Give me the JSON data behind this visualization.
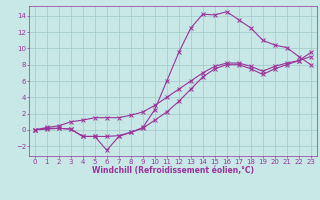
{
  "title": "",
  "xlabel": "Windchill (Refroidissement éolien,°C)",
  "bg_color": "#c8e8e8",
  "line_color": "#993399",
  "xlim": [
    -0.5,
    23.5
  ],
  "ylim": [
    -3.2,
    15.2
  ],
  "xticks": [
    0,
    1,
    2,
    3,
    4,
    5,
    6,
    7,
    8,
    9,
    10,
    11,
    12,
    13,
    14,
    15,
    16,
    17,
    18,
    19,
    20,
    21,
    22,
    23
  ],
  "yticks": [
    -2,
    0,
    2,
    4,
    6,
    8,
    10,
    12,
    14
  ],
  "curve1_x": [
    0,
    1,
    2,
    3,
    4,
    5,
    6,
    7,
    8,
    9,
    10,
    11,
    12,
    13,
    14,
    15,
    16,
    17,
    18,
    19,
    20,
    21,
    22,
    23
  ],
  "curve1_y": [
    0,
    0.2,
    0.2,
    0.1,
    -0.8,
    -0.8,
    -2.5,
    -0.8,
    -0.3,
    0.3,
    2.5,
    6.0,
    9.5,
    12.5,
    14.2,
    14.1,
    14.5,
    13.5,
    12.5,
    11.0,
    10.4,
    10.1,
    9.0,
    8.0
  ],
  "curve2_x": [
    0,
    1,
    2,
    3,
    4,
    5,
    6,
    7,
    8,
    9,
    10,
    11,
    12,
    13,
    14,
    15,
    16,
    17,
    18,
    19,
    20,
    21,
    22,
    23
  ],
  "curve2_y": [
    0,
    0.1,
    0.2,
    0.1,
    -0.8,
    -0.8,
    -0.8,
    -0.7,
    -0.3,
    0.2,
    1.2,
    2.2,
    3.5,
    5.0,
    6.5,
    7.5,
    8.0,
    8.0,
    7.5,
    6.8,
    7.5,
    8.0,
    8.5,
    9.5
  ],
  "curve3_x": [
    0,
    1,
    2,
    3,
    4,
    5,
    6,
    7,
    8,
    9,
    10,
    11,
    12,
    13,
    14,
    15,
    16,
    17,
    18,
    19,
    20,
    21,
    22,
    23
  ],
  "curve3_y": [
    0,
    0.3,
    0.5,
    1.0,
    1.2,
    1.5,
    1.5,
    1.5,
    1.8,
    2.2,
    3.0,
    4.0,
    5.0,
    6.0,
    7.0,
    7.8,
    8.2,
    8.2,
    7.8,
    7.2,
    7.8,
    8.2,
    8.5,
    9.0
  ],
  "grid_color": "#a0c8c8",
  "xlabel_fontsize": 5.5,
  "tick_fontsize": 5.0
}
